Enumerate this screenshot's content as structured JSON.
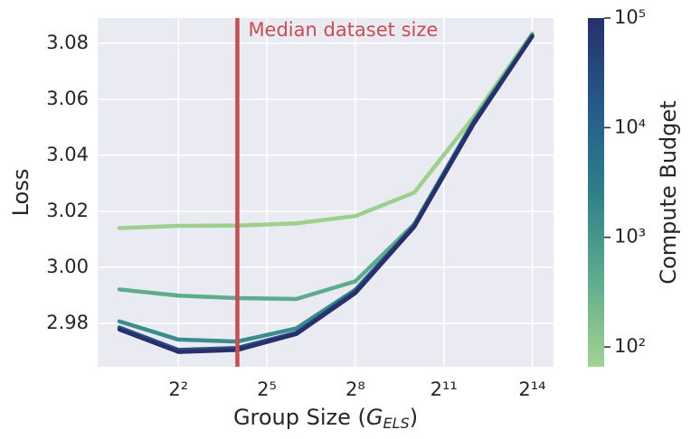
{
  "chart_data": {
    "type": "line",
    "x": [
      1,
      4,
      16,
      64,
      256,
      1024,
      4096,
      16384
    ],
    "xscale": "log2",
    "xlim": [
      0.6,
      27000
    ],
    "xticks": [
      {
        "value": 4,
        "label": "2²"
      },
      {
        "value": 32,
        "label": "2⁵"
      },
      {
        "value": 256,
        "label": "2⁸"
      },
      {
        "value": 2048,
        "label": "2¹¹"
      },
      {
        "value": 16384,
        "label": "2¹⁴"
      }
    ],
    "ylim": [
      2.9645,
      3.089
    ],
    "yticks": [
      2.98,
      {
        "value": 3.0,
        "label": "3.00"
      },
      3.02,
      3.04,
      3.06,
      3.08
    ],
    "x_label": [
      "Group Size (",
      "G",
      "ELS",
      ")"
    ],
    "y_label": "Loss",
    "grid": true,
    "series": [
      {
        "color": "#9dcf8e",
        "values": [
          3.014,
          3.0148,
          3.0149,
          3.0157,
          3.0183,
          3.0267,
          3.0535,
          3.0835
        ]
      },
      {
        "color": "#5fab8d",
        "values": [
          2.9921,
          2.9899,
          2.989,
          2.9887,
          2.995,
          3.0155,
          3.052,
          3.083
        ]
      },
      {
        "color": "#3a8d8c",
        "values": [
          2.9807,
          2.9742,
          2.9735,
          2.9782,
          2.992,
          3.015,
          3.052,
          3.083
        ]
      },
      {
        "color": "#2d4f85",
        "values": [
          2.9785,
          2.9705,
          2.9712,
          2.9766,
          2.9915,
          3.015,
          3.0515,
          3.0825
        ]
      },
      {
        "color": "#27306a",
        "values": [
          2.9778,
          2.9698,
          2.9705,
          2.9762,
          2.9908,
          3.0145,
          3.051,
          3.0825
        ]
      }
    ],
    "annotation": {
      "text": "Median dataset size",
      "x": 16,
      "color": "#c44e52"
    },
    "colorbar": {
      "label": "Compute Budget",
      "scale": "log",
      "lim": [
        66,
        100000
      ],
      "colors": [
        "#a3d292",
        "#5fab8d",
        "#2f7f8b",
        "#265a89",
        "#26306a"
      ],
      "ticks": [
        {
          "value": 100,
          "label": "10²"
        },
        {
          "value": 1000,
          "label": "10³"
        },
        {
          "value": 10000,
          "label": "10⁴"
        },
        {
          "value": 100000,
          "label": "10⁵"
        }
      ]
    }
  }
}
